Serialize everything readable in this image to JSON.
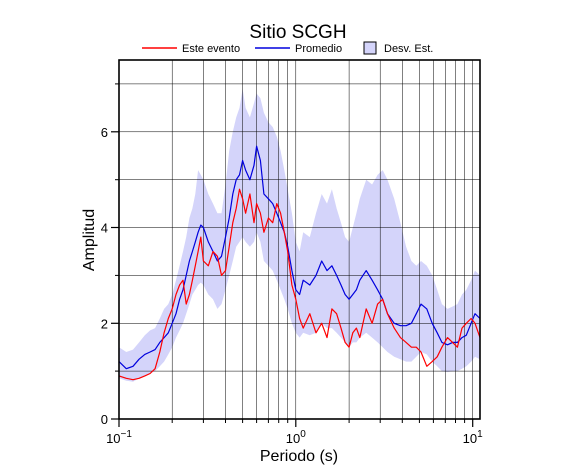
{
  "chart_data": {
    "type": "line",
    "title": "Sitio SCGH",
    "xlabel": "Periodo (s)",
    "ylabel": "Amplitud",
    "x_scale": "log",
    "xlim": [
      0.1,
      11
    ],
    "ylim": [
      0,
      7.5
    ],
    "x_ticks": [
      {
        "label": "10",
        "sup": "−1"
      },
      {
        "label": "10",
        "sup": "0"
      },
      {
        "label": "10",
        "sup": "1"
      }
    ],
    "y_ticks": [
      "0",
      "2",
      "4",
      "6"
    ],
    "grid": true,
    "legend_placement": "top",
    "legend": [
      {
        "label": "Este evento",
        "kind": "line",
        "color": "#ff0000"
      },
      {
        "label": "Promedio",
        "kind": "line",
        "color": "#0000dd"
      },
      {
        "label": "Desv. Est.",
        "kind": "patch",
        "color": "#d4d4fa"
      }
    ],
    "series": [
      {
        "name": "Este evento",
        "color": "#ff0000",
        "x": [
          0.1,
          0.11,
          0.12,
          0.13,
          0.14,
          0.15,
          0.16,
          0.17,
          0.18,
          0.19,
          0.2,
          0.21,
          0.22,
          0.23,
          0.24,
          0.25,
          0.26,
          0.27,
          0.28,
          0.29,
          0.3,
          0.32,
          0.34,
          0.36,
          0.38,
          0.4,
          0.42,
          0.44,
          0.46,
          0.48,
          0.5,
          0.52,
          0.55,
          0.58,
          0.6,
          0.63,
          0.66,
          0.7,
          0.74,
          0.78,
          0.82,
          0.86,
          0.9,
          0.95,
          1.0,
          1.05,
          1.1,
          1.2,
          1.3,
          1.4,
          1.5,
          1.6,
          1.7,
          1.8,
          1.9,
          2.0,
          2.1,
          2.2,
          2.3,
          2.5,
          2.7,
          2.9,
          3.1,
          3.3,
          3.6,
          3.9,
          4.2,
          4.5,
          4.8,
          5.1,
          5.5,
          5.9,
          6.3,
          6.7,
          7.2,
          7.7,
          8.2,
          8.7,
          9.2,
          9.8,
          10.3,
          11.0
        ],
        "values": [
          0.9,
          0.85,
          0.82,
          0.85,
          0.9,
          0.95,
          1.05,
          1.4,
          1.8,
          2.1,
          2.3,
          2.6,
          2.8,
          2.9,
          2.4,
          2.6,
          2.9,
          3.2,
          3.5,
          3.8,
          3.3,
          3.2,
          3.5,
          3.4,
          3.0,
          3.1,
          3.6,
          4.1,
          4.4,
          4.8,
          4.6,
          4.3,
          4.7,
          4.1,
          4.5,
          4.3,
          3.9,
          4.2,
          4.1,
          4.5,
          4.3,
          3.9,
          3.5,
          2.8,
          2.5,
          2.1,
          1.9,
          2.2,
          1.8,
          2.0,
          1.7,
          2.3,
          2.2,
          1.9,
          1.6,
          1.5,
          1.8,
          1.9,
          1.7,
          2.3,
          2.0,
          2.4,
          2.5,
          2.2,
          1.9,
          1.7,
          1.6,
          1.5,
          1.5,
          1.4,
          1.1,
          1.2,
          1.3,
          1.5,
          1.7,
          1.6,
          1.5,
          1.9,
          2.0,
          2.1,
          2.0,
          1.7
        ]
      },
      {
        "name": "Promedio",
        "color": "#0000dd",
        "x": [
          0.1,
          0.11,
          0.12,
          0.13,
          0.14,
          0.15,
          0.16,
          0.17,
          0.18,
          0.19,
          0.2,
          0.21,
          0.22,
          0.23,
          0.24,
          0.25,
          0.26,
          0.27,
          0.28,
          0.29,
          0.3,
          0.32,
          0.34,
          0.36,
          0.38,
          0.4,
          0.42,
          0.44,
          0.46,
          0.48,
          0.5,
          0.52,
          0.55,
          0.58,
          0.6,
          0.63,
          0.66,
          0.7,
          0.74,
          0.78,
          0.82,
          0.86,
          0.9,
          0.95,
          1.0,
          1.05,
          1.1,
          1.2,
          1.3,
          1.4,
          1.5,
          1.6,
          1.7,
          1.8,
          1.9,
          2.0,
          2.1,
          2.2,
          2.3,
          2.5,
          2.7,
          2.9,
          3.1,
          3.3,
          3.6,
          3.9,
          4.2,
          4.5,
          4.8,
          5.1,
          5.5,
          5.9,
          6.3,
          6.7,
          7.2,
          7.7,
          8.2,
          8.7,
          9.2,
          9.8,
          10.3,
          11.0
        ],
        "values": [
          1.2,
          1.05,
          1.1,
          1.25,
          1.35,
          1.4,
          1.45,
          1.6,
          1.7,
          1.8,
          2.0,
          2.2,
          2.5,
          2.7,
          3.0,
          3.3,
          3.5,
          3.7,
          3.9,
          4.05,
          4.0,
          3.7,
          3.5,
          3.3,
          3.4,
          3.8,
          4.2,
          4.7,
          5.0,
          5.1,
          5.4,
          5.2,
          5.0,
          5.3,
          5.7,
          5.4,
          4.7,
          4.6,
          4.5,
          4.3,
          4.1,
          3.9,
          3.6,
          3.1,
          2.7,
          2.6,
          2.9,
          2.8,
          3.0,
          3.3,
          3.1,
          3.2,
          3.0,
          2.8,
          2.6,
          2.5,
          2.6,
          2.7,
          2.9,
          3.1,
          2.9,
          2.7,
          2.5,
          2.2,
          2.0,
          1.95,
          1.95,
          2.0,
          2.2,
          2.4,
          2.3,
          2.0,
          1.8,
          1.6,
          1.55,
          1.6,
          1.6,
          1.7,
          1.75,
          2.0,
          2.2,
          2.1
        ]
      }
    ],
    "band": {
      "name": "Desv. Est.",
      "color": "#d4d4fa",
      "x": [
        0.1,
        0.11,
        0.12,
        0.13,
        0.14,
        0.15,
        0.16,
        0.17,
        0.18,
        0.19,
        0.2,
        0.21,
        0.22,
        0.23,
        0.24,
        0.25,
        0.26,
        0.27,
        0.28,
        0.29,
        0.3,
        0.32,
        0.34,
        0.36,
        0.38,
        0.4,
        0.42,
        0.44,
        0.46,
        0.48,
        0.5,
        0.52,
        0.55,
        0.58,
        0.6,
        0.63,
        0.66,
        0.7,
        0.74,
        0.78,
        0.82,
        0.86,
        0.9,
        0.95,
        1.0,
        1.05,
        1.1,
        1.2,
        1.3,
        1.4,
        1.5,
        1.6,
        1.7,
        1.8,
        1.9,
        2.0,
        2.1,
        2.2,
        2.3,
        2.5,
        2.7,
        2.9,
        3.1,
        3.3,
        3.6,
        3.9,
        4.2,
        4.5,
        4.8,
        5.1,
        5.5,
        5.9,
        6.3,
        6.7,
        7.2,
        7.7,
        8.2,
        8.7,
        9.2,
        9.8,
        10.3,
        11.0
      ],
      "lower": [
        0.85,
        0.8,
        0.78,
        0.85,
        0.9,
        0.95,
        1.0,
        1.1,
        1.2,
        1.35,
        1.5,
        1.7,
        1.85,
        2.0,
        2.2,
        2.4,
        2.6,
        2.7,
        2.8,
        2.85,
        2.8,
        2.6,
        2.5,
        2.3,
        2.4,
        2.7,
        3.0,
        3.3,
        3.6,
        3.7,
        3.8,
        3.7,
        3.6,
        3.7,
        3.9,
        3.7,
        3.3,
        3.2,
        3.1,
        2.9,
        2.7,
        2.5,
        2.3,
        2.0,
        1.8,
        1.7,
        1.8,
        1.75,
        1.8,
        2.0,
        1.9,
        1.9,
        1.8,
        1.7,
        1.6,
        1.5,
        1.6,
        1.6,
        1.7,
        1.8,
        1.7,
        1.6,
        1.5,
        1.4,
        1.3,
        1.25,
        1.2,
        1.2,
        1.3,
        1.4,
        1.35,
        1.2,
        1.1,
        1.0,
        0.98,
        1.0,
        1.0,
        1.05,
        1.1,
        1.2,
        1.3,
        1.25
      ],
      "upper": [
        1.5,
        1.4,
        1.45,
        1.6,
        1.75,
        1.85,
        1.9,
        2.1,
        2.3,
        2.4,
        2.6,
        2.9,
        3.2,
        3.5,
        3.8,
        4.2,
        4.4,
        4.7,
        5.2,
        5.1,
        5.0,
        4.7,
        4.5,
        4.3,
        4.3,
        4.9,
        5.6,
        6.0,
        6.3,
        6.5,
        6.9,
        6.5,
        6.3,
        6.6,
        6.8,
        6.7,
        6.4,
        6.2,
        6.1,
        5.9,
        5.6,
        5.2,
        4.8,
        4.3,
        3.7,
        3.5,
        3.9,
        3.8,
        4.3,
        4.7,
        4.5,
        4.8,
        4.4,
        4.1,
        3.8,
        3.7,
        4.0,
        4.3,
        4.6,
        5.0,
        4.9,
        5.1,
        5.2,
        5.0,
        4.6,
        4.1,
        3.6,
        3.3,
        3.2,
        3.3,
        3.2,
        3.0,
        2.7,
        2.4,
        2.3,
        2.35,
        2.4,
        2.6,
        2.7,
        2.9,
        3.1,
        3.0
      ]
    }
  }
}
